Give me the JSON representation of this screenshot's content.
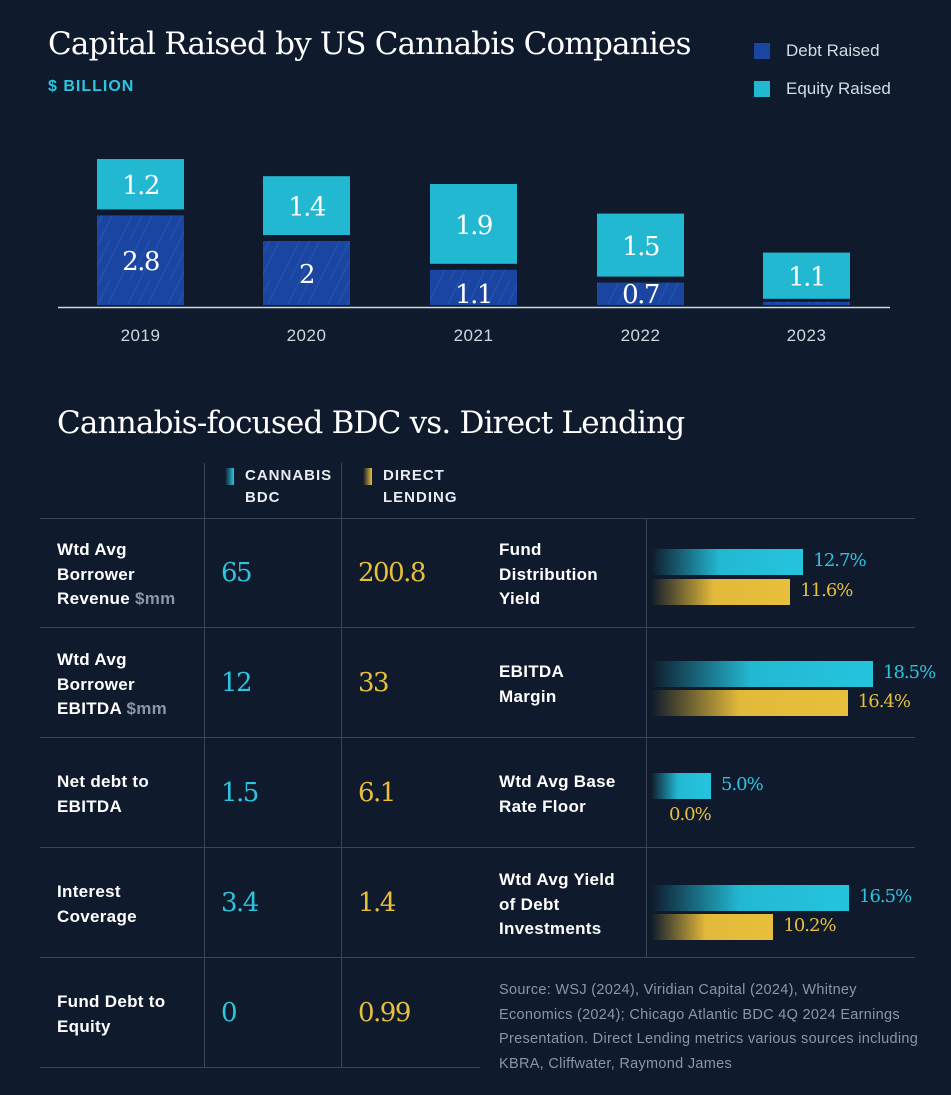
{
  "colors": {
    "background": "#0f1b2c",
    "debt": "#1a45a0",
    "equity": "#23b8d2",
    "cannabis_bdc": "#2ec4e0",
    "direct_lending": "#e8bf3c",
    "grid_line": "#3a4658"
  },
  "chart_data": [
    {
      "type": "bar",
      "stacked": true,
      "title": "Capital Raised by US Cannabis Companies",
      "subtitle": "$ BILLION",
      "categories": [
        "2019",
        "2020",
        "2021",
        "2022",
        "2023"
      ],
      "series": [
        {
          "name": "Debt Raised",
          "values": [
            2.8,
            2.0,
            1.1,
            0.7,
            0.1
          ],
          "labels": [
            "2.8",
            "2",
            "1.1",
            "0.7",
            ""
          ]
        },
        {
          "name": "Equity Raised",
          "values": [
            1.2,
            1.4,
            1.9,
            1.5,
            1.1
          ],
          "labels": [
            "1.2",
            "1.4",
            "1.9",
            "1.5",
            "1.1"
          ]
        }
      ],
      "legend_position": "top-right",
      "ylim": [
        0,
        4.2
      ],
      "grid": false
    },
    {
      "type": "bar",
      "orientation": "horizontal",
      "categories": [
        "Fund Distribution Yield",
        "EBITDA Margin",
        "Wtd Avg Base Rate Floor",
        "Wtd Avg Yield of Debt Investments"
      ],
      "series": [
        {
          "name": "CANNABIS BDC",
          "values": [
            12.7,
            18.5,
            5.0,
            16.5
          ],
          "labels": [
            "12.7%",
            "18.5%",
            "5.0%",
            "16.5%"
          ]
        },
        {
          "name": "DIRECT LENDING",
          "values": [
            11.6,
            16.4,
            0.0,
            10.2
          ],
          "labels": [
            "11.6%",
            "16.4%",
            "0.0%",
            "10.2%"
          ]
        }
      ],
      "xlim": [
        0,
        18.5
      ]
    }
  ],
  "table": {
    "title": "Cannabis-focused BDC vs. Direct Lending",
    "columns": [
      "CANNABIS BDC",
      "DIRECT LENDING"
    ],
    "columns_lines": [
      [
        "CANNABIS",
        "BDC"
      ],
      [
        "DIRECT",
        "LENDING"
      ]
    ],
    "rows": [
      {
        "label_lines": [
          "Wtd Avg",
          "Borrower",
          "Revenue "
        ],
        "unit": "$mm",
        "bdc": "65",
        "dl": "200.8"
      },
      {
        "label_lines": [
          "Wtd Avg",
          "Borrower",
          "EBITDA "
        ],
        "unit": "$mm",
        "bdc": "12",
        "dl": "33"
      },
      {
        "label_lines": [
          "Net debt to",
          "EBITDA"
        ],
        "unit": "",
        "bdc": "1.5",
        "dl": "6.1"
      },
      {
        "label_lines": [
          "Interest",
          "Coverage"
        ],
        "unit": "",
        "bdc": "3.4",
        "dl": "1.4"
      },
      {
        "label_lines": [
          "Fund Debt to",
          "Equity"
        ],
        "unit": "",
        "bdc": "0",
        "dl": "0.99"
      }
    ]
  },
  "metrics": [
    {
      "label_lines": [
        "Fund",
        "Distribution",
        "Yield"
      ]
    },
    {
      "label_lines": [
        "EBITDA",
        "Margin"
      ]
    },
    {
      "label_lines": [
        "Wtd Avg Base",
        "Rate Floor"
      ]
    },
    {
      "label_lines": [
        "Wtd Avg Yield",
        "of Debt",
        "Investments"
      ]
    }
  ],
  "source_note": "Source: WSJ (2024), Viridian Capital (2024), Whitney Economics (2024); Chicago Atlantic BDC 4Q 2024 Earnings Presentation. Direct Lending metrics various sources including KBRA, Cliffwater, Raymond James"
}
